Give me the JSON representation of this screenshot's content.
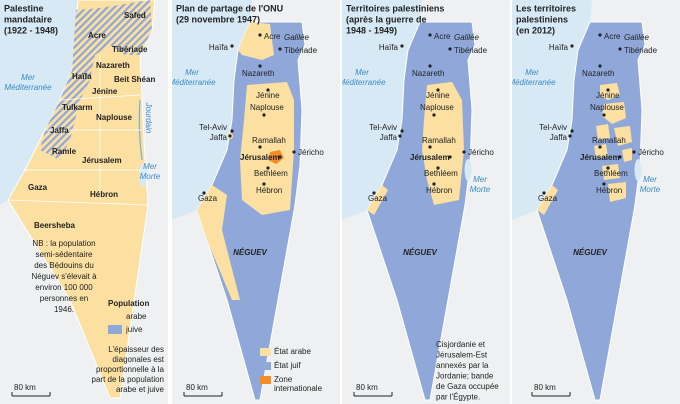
{
  "panels": [
    {
      "title": [
        "Palestine",
        "mandataire",
        "(1922 - 1948)"
      ],
      "places": [
        "Acre",
        "Safed",
        "Tibériade",
        "Nazareth",
        "Haïfa",
        "Beit Shéan",
        "Jénine",
        "Tulkarm",
        "Naplouse",
        "Jaffa",
        "Ramle",
        "Jérusalem",
        "Gaza",
        "Hébron",
        "Beersheba"
      ],
      "waters": [
        "Mer",
        "Méditerranée",
        "Jourdain",
        "Mer",
        "Morte"
      ],
      "note": [
        "NB : la population",
        "semi-sédentaire",
        "des Bédouins du",
        "Néguev s'élevait à",
        "environ 100 000",
        "personnes en",
        "1946."
      ],
      "legend": {
        "title": "Population",
        "items": [
          "arabe",
          "juive"
        ]
      },
      "legend_note": [
        "L'épaisseur des",
        "diagonales est",
        "proportionnelle à la",
        "part de la population",
        "arabe et juive"
      ],
      "scale": "80 km"
    },
    {
      "title": [
        "Plan de partage de l'ONU",
        "(29 novembre 1947)"
      ],
      "places": [
        "Acre",
        "Galilée",
        "Haïfa",
        "Tibériade",
        "Nazareth",
        "Jénine",
        "Naplouse",
        "Tel-Aviv",
        "Jaffa",
        "Ramallah",
        "Jéricho",
        "Jérusalem",
        "Bethléem",
        "Hébron",
        "Gaza"
      ],
      "waters": [
        "Mer",
        "Méditerranée"
      ],
      "region": "NÉGUEV",
      "legend": {
        "items": [
          [
            "État arabe"
          ],
          [
            "État juif"
          ],
          [
            "Zone",
            "internationale"
          ]
        ]
      },
      "scale": "80 km"
    },
    {
      "title": [
        "Territoires palestiniens",
        "(après la guerre de",
        "1948 - 1949)"
      ],
      "places": [
        "Acre",
        "Galilée",
        "Haïfa",
        "Tibériade",
        "Nazareth",
        "Jénine",
        "Naplouse",
        "Tel-Aviv",
        "Jaffa",
        "Ramallah",
        "Jéricho",
        "Jérusalem",
        "Bethléem",
        "Hébron",
        "Gaza"
      ],
      "waters": [
        "Mer",
        "Méditerranée",
        "Mer",
        "Morte"
      ],
      "region": "NÉGUEV",
      "note": [
        "Cisjordanie et",
        "Jérusalem-Est",
        "annexés par la",
        "Jordanie; bande",
        "de Gaza occupée",
        "par l'Égypte."
      ],
      "scale": "80 km"
    },
    {
      "title": [
        "Les territoires",
        "palestiniens",
        "(en 2012)"
      ],
      "places": [
        "Acre",
        "Galilée",
        "Haïfa",
        "Tibériade",
        "Nazareth",
        "Jénine",
        "Naplouse",
        "Tel-Aviv",
        "Jaffa",
        "Ramallah",
        "Jéricho",
        "Jérusalem",
        "Bethléem",
        "Hébron",
        "Gaza"
      ],
      "waters": [
        "Mer",
        "Méditerranée",
        "Mer",
        "Morte"
      ],
      "region": "NÉGUEV",
      "scale": "80 km"
    }
  ]
}
